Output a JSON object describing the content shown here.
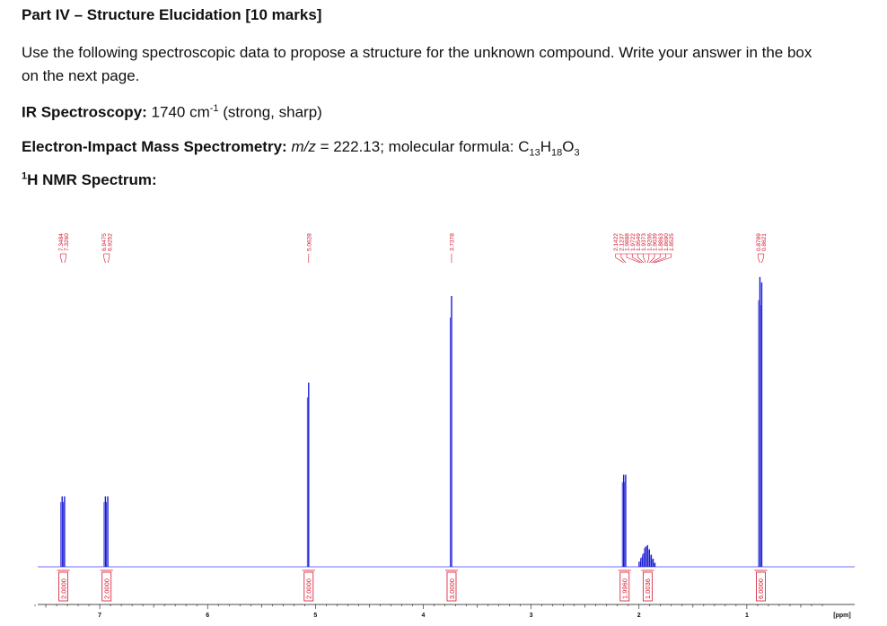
{
  "title": "Part IV – Structure Elucidation [10 marks]",
  "instructions": "Use the following spectroscopic data to propose a structure for the unknown compound. Write your answer in the box on the next page.",
  "ir": {
    "label": "IR Spectroscopy:",
    "value": "1740 cm",
    "exponent": "-1",
    "note": "(strong, sharp)"
  },
  "ms": {
    "label": "Electron-Impact Mass Spectrometry:",
    "mz_label": "m/z",
    "mz_value": "= 222.13; molecular formula: ",
    "formula": {
      "C": "C",
      "c_n": "13",
      "H": "H",
      "h_n": "18",
      "O": "O",
      "o_n": "3"
    }
  },
  "nmr": {
    "nucleus_sup": "1",
    "label": "H NMR Spectrum:"
  },
  "chart_data": {
    "type": "line",
    "x_axis": {
      "min": 0.2,
      "max": 7.6,
      "reversed": true,
      "unit_label": "[ppm]",
      "ticks": [
        1,
        2,
        3,
        4,
        5,
        6,
        7
      ]
    },
    "peak_labels": [
      [
        "7.3484",
        "7.3260"
      ],
      [
        "6.9475",
        "6.9252"
      ],
      [
        "5.0628"
      ],
      [
        "3.7378"
      ],
      [
        "2.1422",
        "2.1237",
        "1.9888",
        "1.9722",
        "1.9549",
        "1.9373",
        "1.9206",
        "1.9039",
        "1.8863",
        "1.8690",
        "1.8525"
      ],
      [
        "0.8789",
        "0.8621"
      ]
    ],
    "peaks": [
      {
        "ppm": 7.3484,
        "height": 0.26
      },
      {
        "ppm": 7.326,
        "height": 0.26
      },
      {
        "ppm": 6.9475,
        "height": 0.26
      },
      {
        "ppm": 6.9252,
        "height": 0.26
      },
      {
        "ppm": 5.0628,
        "height": 0.68
      },
      {
        "ppm": 3.7378,
        "height": 1.0
      },
      {
        "ppm": 2.1422,
        "height": 0.34
      },
      {
        "ppm": 2.1237,
        "height": 0.34
      },
      {
        "ppm": 1.9888,
        "height": 0.02
      },
      {
        "ppm": 1.9722,
        "height": 0.035
      },
      {
        "ppm": 1.9549,
        "height": 0.05
      },
      {
        "ppm": 1.9373,
        "height": 0.075
      },
      {
        "ppm": 1.9206,
        "height": 0.08
      },
      {
        "ppm": 1.9039,
        "height": 0.065
      },
      {
        "ppm": 1.8863,
        "height": 0.045
      },
      {
        "ppm": 1.869,
        "height": 0.03
      },
      {
        "ppm": 1.8525,
        "height": 0.015
      },
      {
        "ppm": 0.8789,
        "height": 1.07
      },
      {
        "ppm": 0.8621,
        "height": 1.05
      }
    ],
    "integrals": [
      {
        "ppm": 7.3372,
        "value": "2.0000"
      },
      {
        "ppm": 6.9363,
        "value": "2.0000"
      },
      {
        "ppm": 5.0628,
        "value": "2.0000"
      },
      {
        "ppm": 3.7378,
        "value": "3.0000"
      },
      {
        "ppm": 2.133,
        "value": "1.9960"
      },
      {
        "ppm": 1.92,
        "value": "1.0036"
      },
      {
        "ppm": 0.8705,
        "value": "6.0000"
      }
    ],
    "colors": {
      "spectrum": "#1a1ad6",
      "baseline": "#8a8aff",
      "labels": "#d4122b",
      "axis": "#111111"
    }
  }
}
